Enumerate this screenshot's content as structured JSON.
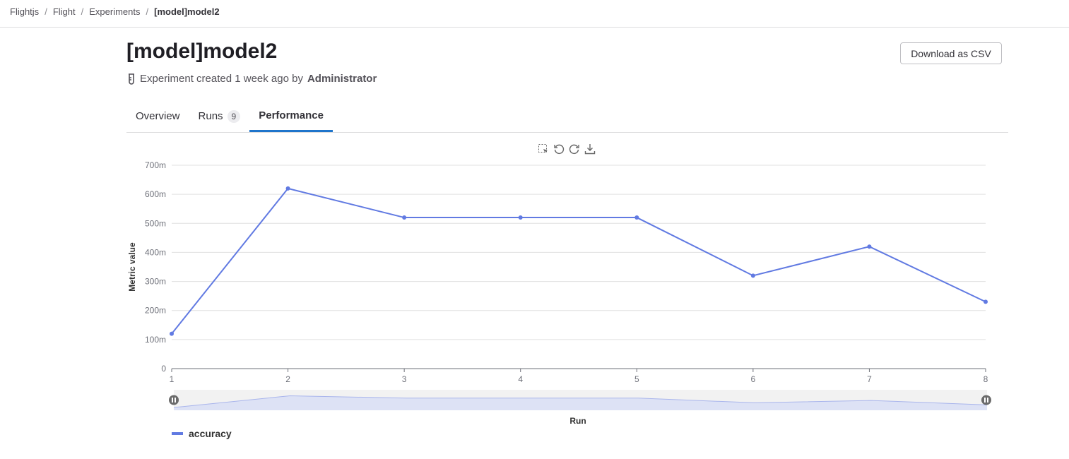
{
  "breadcrumb": [
    "Flightjs",
    "Flight",
    "Experiments",
    "[model]model2"
  ],
  "title": "[model]model2",
  "meta": {
    "prefix": "Experiment created 1 week ago by",
    "author": "Administrator",
    "icon": "test-tube-icon"
  },
  "download_label": "Download as CSV",
  "tabs": [
    {
      "label": "Overview"
    },
    {
      "label": "Runs",
      "count": "9"
    },
    {
      "label": "Performance",
      "active": true
    }
  ],
  "toolbar": [
    "box-select-icon",
    "undo-icon",
    "redo-icon",
    "download-icon"
  ],
  "chart_data": {
    "type": "line",
    "xlabel": "Run",
    "ylabel": "Metric value",
    "x": [
      1,
      2,
      3,
      4,
      5,
      6,
      7,
      8
    ],
    "ylim": [
      0,
      0.7
    ],
    "yticks": [
      "0",
      "100m",
      "200m",
      "300m",
      "400m",
      "500m",
      "600m",
      "700m"
    ],
    "series": [
      {
        "name": "accuracy",
        "color": "#617ae2",
        "values": [
          0.12,
          0.62,
          0.52,
          0.52,
          0.52,
          0.32,
          0.42,
          0.23
        ]
      }
    ],
    "grid": true,
    "legend": "bottom-left",
    "data_zoom": true
  }
}
